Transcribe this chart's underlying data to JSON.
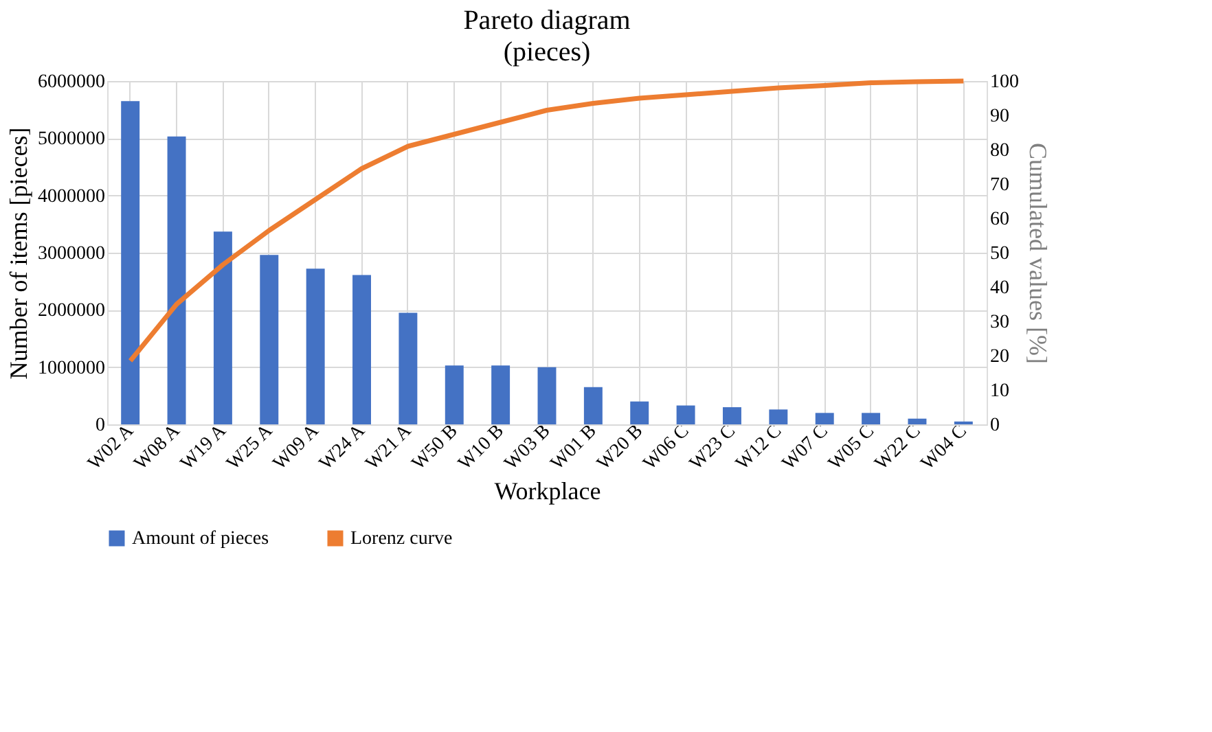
{
  "chart_data": {
    "type": "bar",
    "title": "Pareto diagram",
    "subtitle": "(pieces)",
    "xlabel": "Workplace",
    "ylabel": "Number of items  [pieces]",
    "y2label": "Cumulated values [%]",
    "categories": [
      "W02 A",
      "W08 A",
      "W19 A",
      "W25 A",
      "W09 A",
      "W24 A",
      "W21 A",
      "W50 B",
      "W10 B",
      "W03 B",
      "W01 B",
      "W20 B",
      "W06 C",
      "W23 C",
      "W12 C",
      "W07 C",
      "W05 C",
      "W22 C",
      "W04 C"
    ],
    "series": [
      {
        "name": "Amount of pieces",
        "color": "#4472c4",
        "values": [
          5650000,
          5030000,
          3370000,
          2960000,
          2720000,
          2610000,
          1950000,
          1030000,
          1030000,
          1000000,
          650000,
          400000,
          330000,
          300000,
          260000,
          200000,
          200000,
          100000,
          50000
        ]
      },
      {
        "name": "Lorenz curve",
        "type": "line",
        "axis": "y2",
        "color": "#ed7d31",
        "values": [
          18.5,
          35,
          46.5,
          56.5,
          65.5,
          74.5,
          81,
          84.5,
          88,
          91.5,
          93.5,
          95,
          96,
          97,
          98,
          98.7,
          99.5,
          99.8,
          100
        ]
      }
    ],
    "ylim": [
      0,
      6000000
    ],
    "yticks": [
      0,
      1000000,
      2000000,
      3000000,
      4000000,
      5000000,
      6000000
    ],
    "y2lim": [
      0,
      100
    ],
    "y2ticks": [
      0,
      10,
      20,
      30,
      40,
      50,
      60,
      70,
      80,
      90,
      100
    ],
    "grid": true,
    "legend": "bottom"
  }
}
